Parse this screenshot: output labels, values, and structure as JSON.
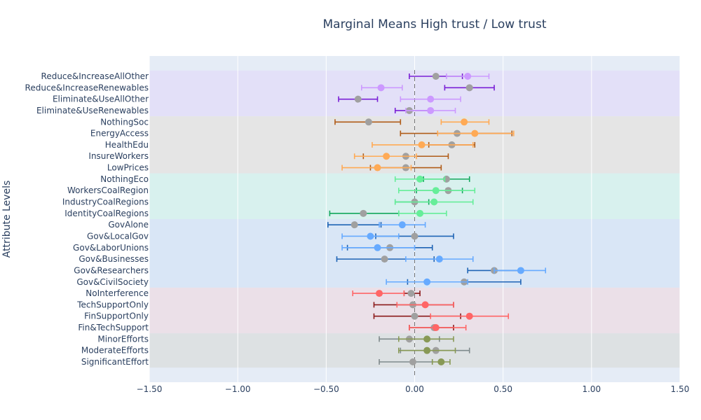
{
  "chart_data": {
    "type": "scatter",
    "title": "Marginal Means High trust / Low trust",
    "xlabel": "",
    "ylabel": "Attribute Levels",
    "xlim": [
      -1.5,
      1.5
    ],
    "xticks": [
      "−1.50",
      "−1.00",
      "−0.50",
      "0.00",
      "0.50",
      "1.00",
      "1.50"
    ],
    "xtick_values": [
      -1.5,
      -1.0,
      -0.5,
      0.0,
      0.5,
      1.0,
      1.5
    ],
    "reference_line_x": 0,
    "grid": true,
    "bands": [
      {
        "from": 0,
        "to": 3,
        "color": "#e3e0f8"
      },
      {
        "from": 4,
        "to": 8,
        "color": "#e5e5e5"
      },
      {
        "from": 9,
        "to": 12,
        "color": "#d8f1ee"
      },
      {
        "from": 13,
        "to": 18,
        "color": "#d9e6f6"
      },
      {
        "from": 19,
        "to": 22,
        "color": "#ebe0e8"
      },
      {
        "from": 23,
        "to": 25,
        "color": "#dde1e3"
      }
    ],
    "categories": [
      "Reduce&IncreaseAllOther",
      "Reduce&IncreaseRenewables",
      "Eliminate&UseAllOther",
      "Eliminate&UseRenewables",
      "NothingSoc",
      "EnergyAccess",
      "HealthEdu",
      "InsureWorkers",
      "LowPrices",
      "NothingEco",
      "WorkersCoalRegion",
      "IndustryCoalRegions",
      "IdentityCoalRegions",
      "GovAlone",
      "Gov&LocalGov",
      "Gov&LaborUnions",
      "Gov&Businesses",
      "Gov&Researchers",
      "Gov&CivilSociety",
      "NoInterference",
      "TechSupportOnly",
      "FinSupportOnly",
      "Fin&TechSupport",
      "MinorEfforts",
      "ModerateEfforts",
      "SignificantEffort"
    ],
    "series": [
      {
        "role": "high",
        "colors": [
          "#cc99ff",
          "#cc99ff",
          "#cc99ff",
          "#cc99ff",
          "#ffaa55",
          "#ffaa55",
          "#ffaa55",
          "#ffaa55",
          "#ffaa55",
          "#66ee99",
          "#66ee99",
          "#66ee99",
          "#66ee99",
          "#66aaff",
          "#66aaff",
          "#66aaff",
          "#66aaff",
          "#66aaff",
          "#66aaff",
          "#ff6666",
          "#ff6666",
          "#ff6666",
          "#ff6666",
          "#889955",
          "#889955",
          "#889955"
        ],
        "values": [
          0.3,
          -0.19,
          0.09,
          0.09,
          0.28,
          0.34,
          0.04,
          -0.16,
          -0.21,
          0.03,
          0.12,
          0.11,
          0.03,
          -0.07,
          -0.25,
          -0.21,
          0.14,
          0.6,
          0.07,
          -0.2,
          0.06,
          0.31,
          0.12,
          0.07,
          0.07,
          0.15
        ],
        "low": [
          0.18,
          -0.3,
          -0.08,
          -0.05,
          0.15,
          0.13,
          -0.24,
          -0.34,
          -0.41,
          -0.11,
          -0.09,
          -0.11,
          -0.09,
          -0.2,
          -0.41,
          -0.41,
          -0.05,
          0.45,
          -0.16,
          -0.35,
          -0.1,
          0.09,
          -0.03,
          -0.09,
          -0.09,
          0.1
        ],
        "high": [
          0.42,
          -0.07,
          0.26,
          0.23,
          0.42,
          0.56,
          0.33,
          0.01,
          -0.02,
          0.17,
          0.34,
          0.33,
          0.18,
          0.06,
          -0.09,
          0.0,
          0.33,
          0.74,
          0.3,
          -0.06,
          0.22,
          0.53,
          0.29,
          0.22,
          0.23,
          0.2
        ]
      },
      {
        "role": "low",
        "colors": [
          "#7a1fd6",
          "#7a1fd6",
          "#7a1fd6",
          "#7a1fd6",
          "#b05c18",
          "#b05c18",
          "#b05c18",
          "#b05c18",
          "#b05c18",
          "#13a85c",
          "#13a85c",
          "#13a85c",
          "#13a85c",
          "#1f64b5",
          "#1f64b5",
          "#1f64b5",
          "#1f64b5",
          "#1f64b5",
          "#1f64b5",
          "#8b1a1a",
          "#8b1a1a",
          "#8b1a1a",
          "#8b1a1a",
          "#7f8a8c",
          "#7f8a8c",
          "#7f8a8c"
        ],
        "values": [
          0.12,
          0.31,
          -0.32,
          -0.03,
          -0.26,
          0.24,
          0.21,
          -0.05,
          -0.05,
          0.18,
          0.19,
          0.0,
          -0.29,
          -0.34,
          0.0,
          -0.14,
          -0.17,
          0.45,
          0.28,
          -0.02,
          -0.01,
          0.0,
          0.11,
          -0.03,
          0.12,
          -0.01
        ],
        "low": [
          -0.03,
          0.17,
          -0.43,
          -0.11,
          -0.45,
          -0.08,
          0.08,
          -0.29,
          -0.25,
          0.05,
          0.01,
          -0.11,
          -0.48,
          -0.49,
          -0.22,
          -0.38,
          -0.44,
          0.3,
          -0.04,
          -0.06,
          -0.23,
          -0.23,
          -0.03,
          -0.2,
          -0.08,
          -0.2
        ],
        "high": [
          0.27,
          0.45,
          -0.21,
          0.08,
          -0.08,
          0.55,
          0.34,
          0.19,
          0.15,
          0.31,
          0.27,
          0.08,
          -0.09,
          -0.19,
          0.22,
          0.1,
          0.11,
          0.6,
          0.6,
          0.03,
          0.22,
          0.26,
          0.22,
          0.14,
          0.31,
          0.1
        ]
      }
    ]
  }
}
